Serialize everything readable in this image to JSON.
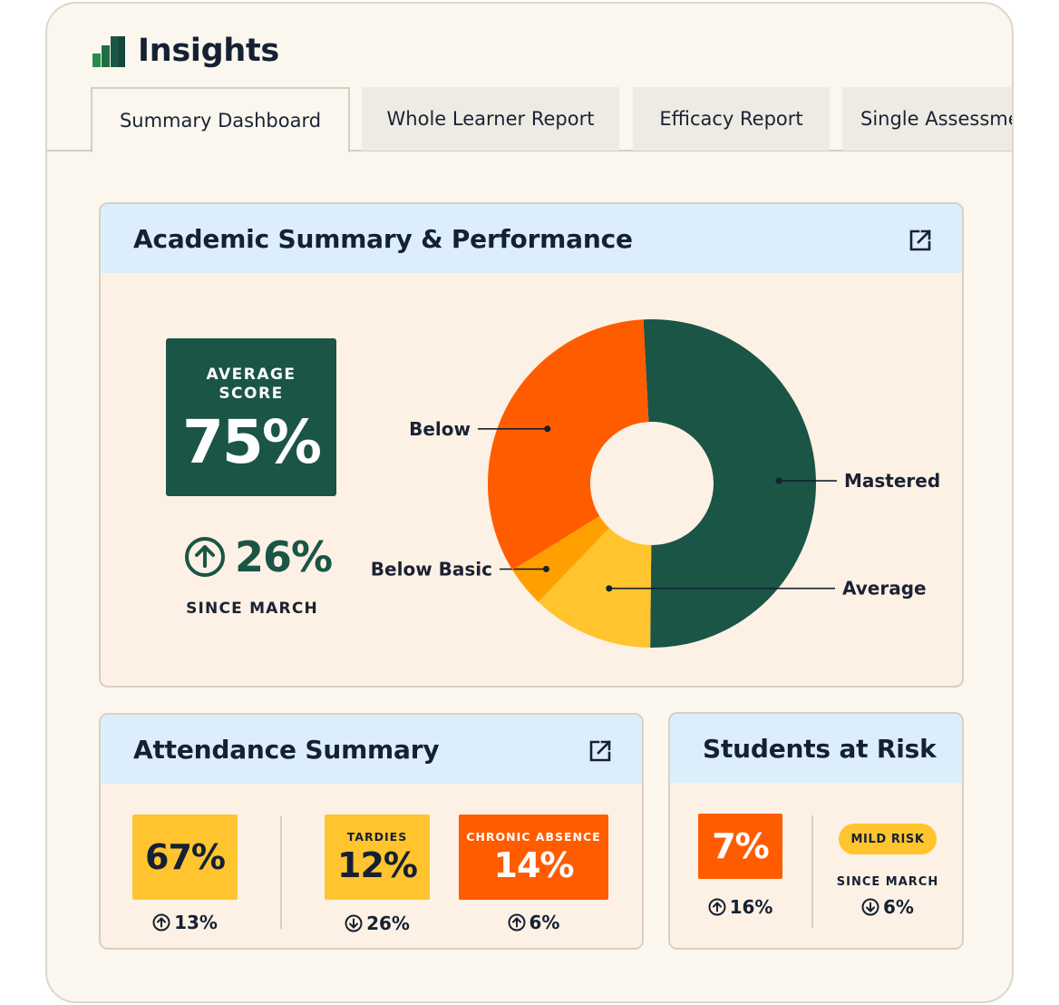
{
  "app": {
    "title": "Insights"
  },
  "tabs": [
    {
      "label": "Summary Dashboard",
      "active": true
    },
    {
      "label": "Whole Learner Report",
      "active": false
    },
    {
      "label": "Efficacy Report",
      "active": false
    },
    {
      "label": "Single Assessment",
      "active": false
    }
  ],
  "academic": {
    "title": "Academic Summary & Performance",
    "average_label_1": "AVERAGE",
    "average_label_2": "SCORE",
    "average_value": "75%",
    "change_value": "26%",
    "change_direction": "up",
    "change_since": "SINCE MARCH"
  },
  "chart_data": {
    "type": "pie",
    "donut": true,
    "labels": [
      "Mastered",
      "Average",
      "Below Basic",
      "Below"
    ],
    "values": [
      51,
      12,
      4,
      33
    ],
    "colors": [
      "#1a5546",
      "#ffc42e",
      "#ffa000",
      "#ff5c00"
    ]
  },
  "attendance": {
    "title": "Attendance Summary",
    "rate_value": "67%",
    "rate_change": "13%",
    "rate_change_direction": "up",
    "tardies_label": "TARDIES",
    "tardies_value": "12%",
    "tardies_change": "26%",
    "tardies_change_direction": "down",
    "chronic_label": "CHRONIC ABSENCE",
    "chronic_value": "14%",
    "chronic_change": "6%",
    "chronic_change_direction": "up"
  },
  "risk": {
    "title": "Students at Risk",
    "value": "7%",
    "change": "16%",
    "change_direction": "up",
    "pill_label": "MILD RISK",
    "since_label": "SINCE MARCH",
    "since_change": "6%",
    "since_change_direction": "down"
  },
  "colors": {
    "background": "#fbf7ef",
    "card_header": "#dceefc",
    "card_body": "#fcf1e4",
    "green": "#1a5546",
    "yellow": "#ffc42e",
    "orange": "#ff5c00"
  },
  "icons": {
    "brand": "bar-chart-icon",
    "external": "external-link-icon",
    "up": "arrow-up-circle-icon",
    "down": "arrow-down-circle-icon"
  }
}
